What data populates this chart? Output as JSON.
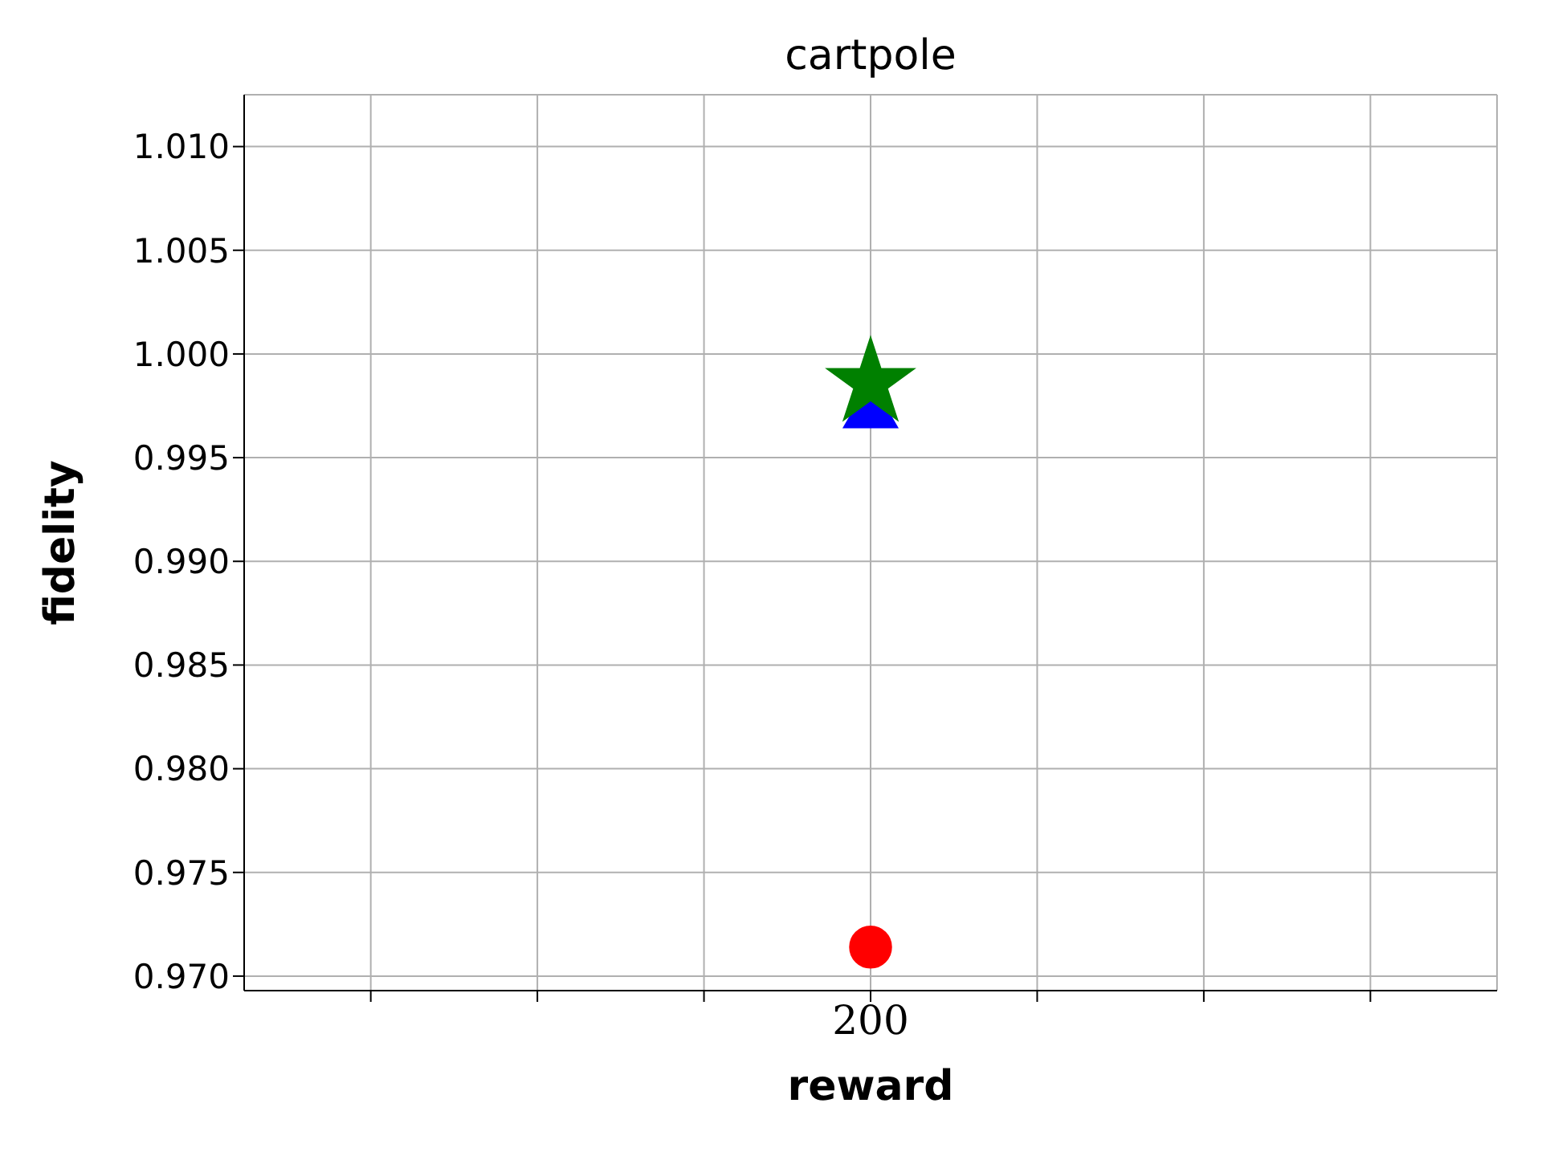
{
  "chart_data": {
    "type": "scatter",
    "title": "cartpole",
    "xlabel": "reward",
    "ylabel": "fidelity",
    "categories": [
      null,
      null,
      null,
      "200",
      null,
      null,
      null
    ],
    "ylim": [
      0.9693,
      1.0125
    ],
    "yticks": [
      {
        "value": 0.97,
        "label": "0.970"
      },
      {
        "value": 0.975,
        "label": "0.975"
      },
      {
        "value": 0.98,
        "label": "0.980"
      },
      {
        "value": 0.985,
        "label": "0.985"
      },
      {
        "value": 0.99,
        "label": "0.990"
      },
      {
        "value": 0.995,
        "label": "0.995"
      },
      {
        "value": 1.0,
        "label": "1.000"
      },
      {
        "value": 1.005,
        "label": "1.005"
      },
      {
        "value": 1.01,
        "label": "1.010"
      }
    ],
    "grid": true,
    "series": [
      {
        "color": "#ff0000",
        "marker": "circle",
        "values": [
          null,
          null,
          null,
          0.9714,
          null,
          null,
          null
        ]
      },
      {
        "color": "#0000ff",
        "marker": "triangle",
        "values": [
          null,
          null,
          null,
          0.9972,
          null,
          null,
          null
        ]
      },
      {
        "color": "#008000",
        "marker": "star",
        "values": [
          null,
          null,
          null,
          0.9986,
          null,
          null,
          null
        ]
      }
    ]
  }
}
